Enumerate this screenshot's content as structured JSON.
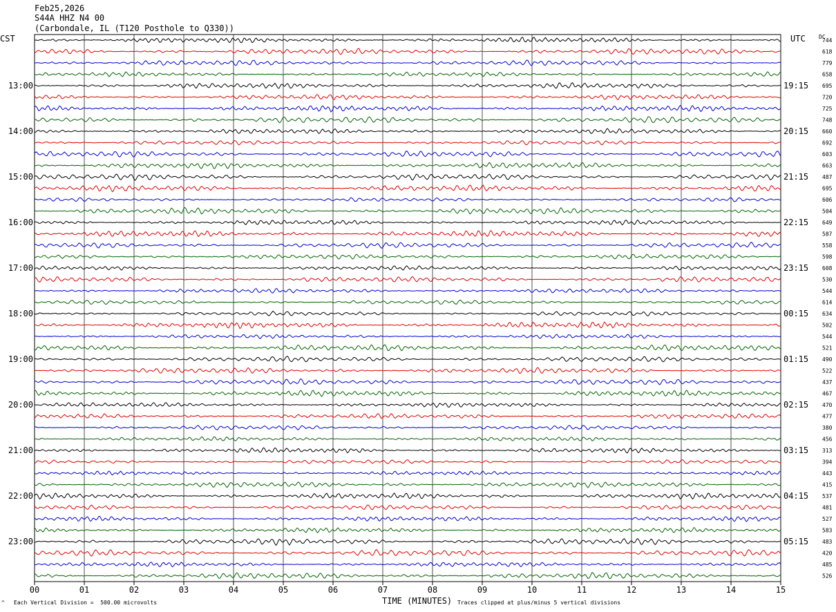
{
  "header": {
    "date": "Feb25,2026",
    "station": "S44A HHZ N4 00",
    "location": "(Carbondale, IL (T120 Posthole to Q330))"
  },
  "left_tz": "CST",
  "right_tz": "UTC",
  "dc_header": "DC",
  "footer": {
    "scale_note": "Each Vertical Division =  500.00 microvolts",
    "clip_note": "Traces clipped at plus/minus 5 vertical divisions",
    "corner_mark": "^"
  },
  "chart_data": {
    "type": "line",
    "title": "",
    "xlabel": "TIME (MINUTES)",
    "x_ticks": [
      "00",
      "01",
      "02",
      "03",
      "04",
      "05",
      "06",
      "07",
      "08",
      "09",
      "10",
      "11",
      "12",
      "13",
      "14",
      "15"
    ],
    "xlim": [
      0,
      15
    ],
    "grid": true,
    "trace_colors": [
      "#000000",
      "#e00000",
      "#0000d0",
      "#006400"
    ],
    "left_hour_labels": [
      "13:00",
      "14:00",
      "15:00",
      "16:00",
      "17:00",
      "18:00",
      "19:00",
      "20:00",
      "21:00",
      "22:00",
      "23:00"
    ],
    "right_hour_labels": [
      "19:15",
      "20:15",
      "21:15",
      "22:15",
      "23:15",
      "00:15",
      "01:15",
      "02:15",
      "03:15",
      "04:15",
      "05:15"
    ],
    "dc_offsets": [
      "744",
      "618",
      "779",
      "658",
      "695",
      "720",
      "725",
      "748",
      "660",
      "692",
      "603",
      "663",
      "487",
      "695",
      "606",
      "504",
      "649",
      "587",
      "558",
      "598",
      "608",
      "530",
      "544",
      "614",
      "634",
      "502",
      "544",
      "521",
      "490",
      "522",
      "437",
      "467",
      "470",
      "477",
      "380",
      "456",
      "313",
      "394",
      "443",
      "415",
      "537",
      "481",
      "527",
      "583",
      "483",
      "420",
      "485",
      "526"
    ]
  }
}
